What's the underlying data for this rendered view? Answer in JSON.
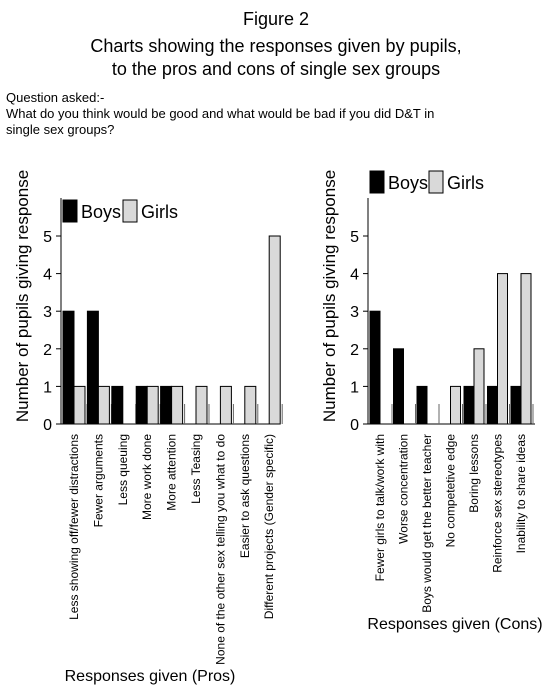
{
  "figure": {
    "title": "Figure 2",
    "subtitle_lines": [
      "Charts showing the responses given by pupils,",
      "to the pros and cons of single sex groups"
    ],
    "question_label": "Question asked:-",
    "question_lines": [
      "What do you think would be good and what would be bad if you did D&T in",
      "single sex groups?"
    ]
  },
  "colors": {
    "boys": "#000000",
    "girls": "#d9d9d9"
  },
  "chart_data": [
    {
      "type": "bar",
      "title": "",
      "categories": [
        "Less showing off/fewer distractions",
        "Fewer arguments",
        "Less queuing",
        "More work done",
        "More attention",
        "Less Teasing",
        "None of the other sex telling you what to do",
        "Easier to ask questions",
        "Different projects (Gender specific)"
      ],
      "series": [
        {
          "name": "Boys",
          "values": [
            3,
            3,
            1,
            1,
            1,
            0,
            0,
            0,
            0
          ]
        },
        {
          "name": "Girls",
          "values": [
            1,
            1,
            0,
            1,
            1,
            1,
            1,
            1,
            5
          ]
        }
      ],
      "xlabel": "Responses given (Pros)",
      "ylabel": "Number of pupils giving response",
      "ylim": [
        0,
        5
      ],
      "yticks": [
        0,
        1,
        2,
        3,
        4,
        5
      ],
      "legend": "top-left",
      "grid": false
    },
    {
      "type": "bar",
      "title": "",
      "categories": [
        "Fewer girls to talk/work with",
        "Worse concentration",
        "Boys would get the better teacher",
        "No competetive edge",
        "Boring lessons",
        "Reinforce sex stereotypes",
        "Inability to share ideas"
      ],
      "series": [
        {
          "name": "Boys",
          "values": [
            3,
            2,
            1,
            0,
            1,
            1,
            1
          ]
        },
        {
          "name": "Girls",
          "values": [
            0,
            0,
            0,
            1,
            2,
            4,
            4
          ]
        }
      ],
      "xlabel": "Responses given (Cons)",
      "ylabel": "Number of pupils giving response",
      "ylim": [
        0,
        5
      ],
      "yticks": [
        0,
        1,
        2,
        3,
        4,
        5
      ],
      "legend": "top-left",
      "grid": false
    }
  ]
}
